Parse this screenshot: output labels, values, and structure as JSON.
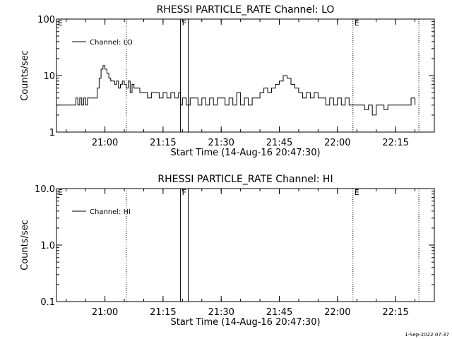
{
  "footer": {
    "timestamp": "1-Sep-2022 07:37"
  },
  "chart_data": [
    {
      "type": "line",
      "title": "RHESSI PARTICLE_RATE Channel: LO",
      "xlabel": "Start Time (14-Aug-16 20:47:30)",
      "ylabel": "Counts/sec",
      "yscale": "log",
      "ylim": [
        1,
        100
      ],
      "yticks": [
        "1",
        "10",
        "100"
      ],
      "xlim": [
        "20:47:30",
        "22:25:00"
      ],
      "xticks": [
        "21:00",
        "21:15",
        "21:30",
        "21:45",
        "22:00",
        "22:15"
      ],
      "legend": {
        "placement": "top-left",
        "entries": [
          "Channel: LO"
        ]
      },
      "marker_lines": [
        {
          "time": "21:05:30",
          "style": "dotted",
          "label": ""
        },
        {
          "time": "21:19:30",
          "style": "solid",
          "label": "F"
        },
        {
          "time": "21:21:30",
          "style": "solid",
          "label": ""
        },
        {
          "time": "22:04:00",
          "style": "dotted",
          "label": "E"
        },
        {
          "time": "22:21:00",
          "style": "dotted",
          "label": ""
        }
      ],
      "corner_labels": {
        "left": "E"
      },
      "series": [
        {
          "name": "Channel: LO",
          "x": [
            "20:47:30",
            "20:52:00",
            "20:52:30",
            "20:53:00",
            "20:53:30",
            "20:54:00",
            "20:54:30",
            "20:55:00",
            "20:55:30",
            "20:56:00",
            "20:56:30",
            "20:57:30",
            "20:58:00",
            "20:58:30",
            "20:59:00",
            "20:59:30",
            "21:00:00",
            "21:00:30",
            "21:01:00",
            "21:01:30",
            "21:02:00",
            "21:02:30",
            "21:03:00",
            "21:03:30",
            "21:04:00",
            "21:04:30",
            "21:05:00",
            "21:05:30",
            "21:06:00",
            "21:06:30",
            "21:07:00",
            "21:07:30",
            "21:08:00",
            "21:09:00",
            "21:10:00",
            "21:11:00",
            "21:12:00",
            "21:13:00",
            "21:14:00",
            "21:15:00",
            "21:16:00",
            "21:17:00",
            "21:18:00",
            "21:19:00",
            "21:19:30",
            "21:20:00",
            "21:21:00",
            "21:22:00",
            "21:23:00",
            "21:24:00",
            "21:25:00",
            "21:26:00",
            "21:27:00",
            "21:28:00",
            "21:29:00",
            "21:30:00",
            "21:31:00",
            "21:32:00",
            "21:33:00",
            "21:34:00",
            "21:35:00",
            "21:36:00",
            "21:37:00",
            "21:38:00",
            "21:39:00",
            "21:40:00",
            "21:41:00",
            "21:42:00",
            "21:43:00",
            "21:44:00",
            "21:45:00",
            "21:46:00",
            "21:47:00",
            "21:48:00",
            "21:49:00",
            "21:50:00",
            "21:51:00",
            "21:52:00",
            "21:53:00",
            "21:54:00",
            "21:55:00",
            "21:56:00",
            "21:57:00",
            "21:58:00",
            "21:59:00",
            "22:00:00",
            "22:01:00",
            "22:02:00",
            "22:03:00",
            "22:04:00",
            "22:05:00",
            "22:06:00",
            "22:07:00",
            "22:08:00",
            "22:09:00",
            "22:10:00",
            "22:11:00",
            "22:12:00",
            "22:13:00",
            "22:14:00",
            "22:15:00",
            "22:16:00",
            "22:17:00",
            "22:18:00",
            "22:19:00",
            "22:20:00"
          ],
          "y": [
            3,
            3,
            4,
            3,
            4,
            3,
            4,
            3,
            4,
            4,
            4,
            4,
            6,
            9,
            13,
            15,
            13,
            11,
            9,
            8,
            8,
            7,
            8,
            6,
            7,
            8,
            7,
            6,
            8,
            5,
            7,
            6,
            6,
            5,
            5,
            4,
            5,
            5,
            4,
            5,
            4,
            5,
            4,
            5,
            3,
            4,
            3,
            4,
            4,
            3,
            4,
            3,
            4,
            3,
            4,
            4,
            3,
            4,
            3,
            5,
            3,
            4,
            3,
            4,
            4,
            5,
            6,
            5,
            6,
            7,
            8,
            10,
            9,
            7,
            6,
            5,
            4,
            5,
            4,
            5,
            4,
            4,
            3,
            4,
            3,
            4,
            3,
            4,
            3,
            3,
            3,
            3,
            2.5,
            3,
            2,
            3,
            3,
            2.5,
            3,
            3,
            3,
            3,
            3,
            3,
            4,
            3
          ],
          "color": "#000000"
        }
      ]
    },
    {
      "type": "line",
      "title": "RHESSI PARTICLE_RATE Channel: HI",
      "xlabel": "Start Time (14-Aug-16 20:47:30)",
      "ylabel": "Counts/sec",
      "yscale": "log",
      "ylim": [
        0.1,
        10.0
      ],
      "yticks": [
        "0.1",
        "1.0",
        "10.0"
      ],
      "xlim": [
        "20:47:30",
        "22:25:00"
      ],
      "xticks": [
        "21:00",
        "21:15",
        "21:30",
        "21:45",
        "22:00",
        "22:15"
      ],
      "legend": {
        "placement": "top-left",
        "entries": [
          "Channel: HI"
        ]
      },
      "marker_lines": [
        {
          "time": "21:05:30",
          "style": "dotted",
          "label": ""
        },
        {
          "time": "21:19:30",
          "style": "solid",
          "label": "F"
        },
        {
          "time": "21:21:30",
          "style": "solid",
          "label": ""
        },
        {
          "time": "22:04:00",
          "style": "dotted",
          "label": "E"
        },
        {
          "time": "22:21:00",
          "style": "dotted",
          "label": ""
        }
      ],
      "corner_labels": {
        "left": "E"
      },
      "series": [
        {
          "name": "Channel: HI",
          "x": [],
          "y": [],
          "color": "#000000"
        }
      ]
    }
  ]
}
